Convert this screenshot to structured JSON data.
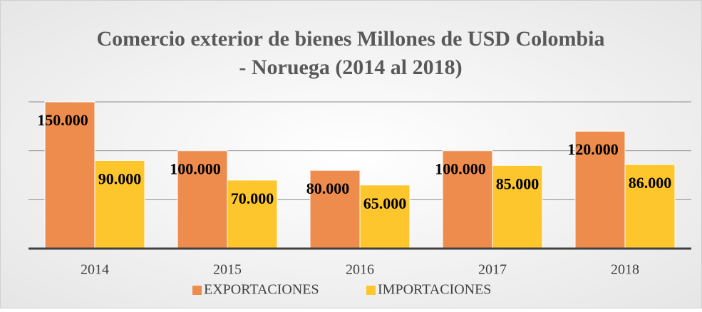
{
  "chart_data": {
    "type": "bar",
    "title": "Comercio exterior de bienes Millones de USD Colombia",
    "subtitle": "- Noruega (2014 al 2018)",
    "categories": [
      "2014",
      "2015",
      "2016",
      "2017",
      "2018"
    ],
    "series": [
      {
        "name": "EXPORTACIONES",
        "color": "#ee8c4e",
        "values": [
          150000,
          100000,
          80000,
          100000,
          120000
        ],
        "value_labels": [
          "150.000",
          "100.000",
          "80.000",
          "100.000",
          "120.000"
        ]
      },
      {
        "name": "IMPORTACIONES",
        "color": "#fcc62c",
        "values": [
          90000,
          70000,
          65000,
          85000,
          86000
        ],
        "value_labels": [
          "90.000",
          "70.000",
          "65.000",
          "85.000",
          "86.000"
        ]
      }
    ],
    "ylim": [
      0,
      150000
    ],
    "yticks": [
      0,
      50000,
      100000,
      150000
    ],
    "grid": true,
    "legend": "bottom"
  }
}
